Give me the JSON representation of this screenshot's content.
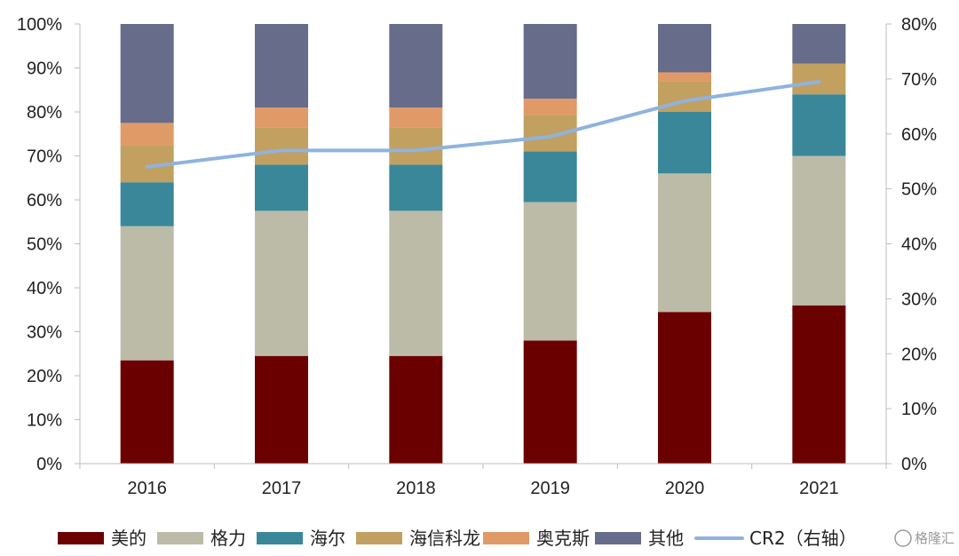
{
  "chart_data": {
    "type": "bar",
    "stacked": true,
    "categories": [
      "2016",
      "2017",
      "2018",
      "2019",
      "2020",
      "2021"
    ],
    "series": [
      {
        "name": "美的",
        "color": "#6b0000",
        "values": [
          23.5,
          24.5,
          24.5,
          28,
          34.5,
          36
        ]
      },
      {
        "name": "格力",
        "color": "#bcbba8",
        "values": [
          30.5,
          33,
          33,
          31.5,
          31.5,
          34
        ]
      },
      {
        "name": "海尔",
        "color": "#3a879a",
        "values": [
          10,
          10.5,
          10.5,
          11.5,
          14,
          14
        ]
      },
      {
        "name": "海信科龙",
        "color": "#c2a060",
        "values": [
          8.5,
          8.5,
          8.5,
          8.2,
          7,
          7
        ]
      },
      {
        "name": "奥克斯",
        "color": "#e09a68",
        "values": [
          5,
          4.5,
          4.5,
          3.8,
          2,
          0
        ]
      },
      {
        "name": "其他",
        "color": "#666c89",
        "values": [
          22.5,
          19,
          19,
          17,
          11,
          9
        ]
      }
    ],
    "line_series": {
      "name": "CR2（右轴）",
      "color": "#8fb3de",
      "axis": "right",
      "values": [
        54,
        57,
        57,
        59.5,
        66,
        69.5
      ]
    },
    "y_left": {
      "ylim": [
        0,
        100
      ],
      "ticks": [
        "0%",
        "10%",
        "20%",
        "30%",
        "40%",
        "50%",
        "60%",
        "70%",
        "80%",
        "90%",
        "100%"
      ]
    },
    "y_right": {
      "ylim": [
        0,
        80
      ],
      "ticks": [
        "0%",
        "10%",
        "20%",
        "30%",
        "40%",
        "50%",
        "60%",
        "70%",
        "80%"
      ]
    },
    "legend_position": "bottom",
    "grid": false
  },
  "watermark": "格隆汇"
}
